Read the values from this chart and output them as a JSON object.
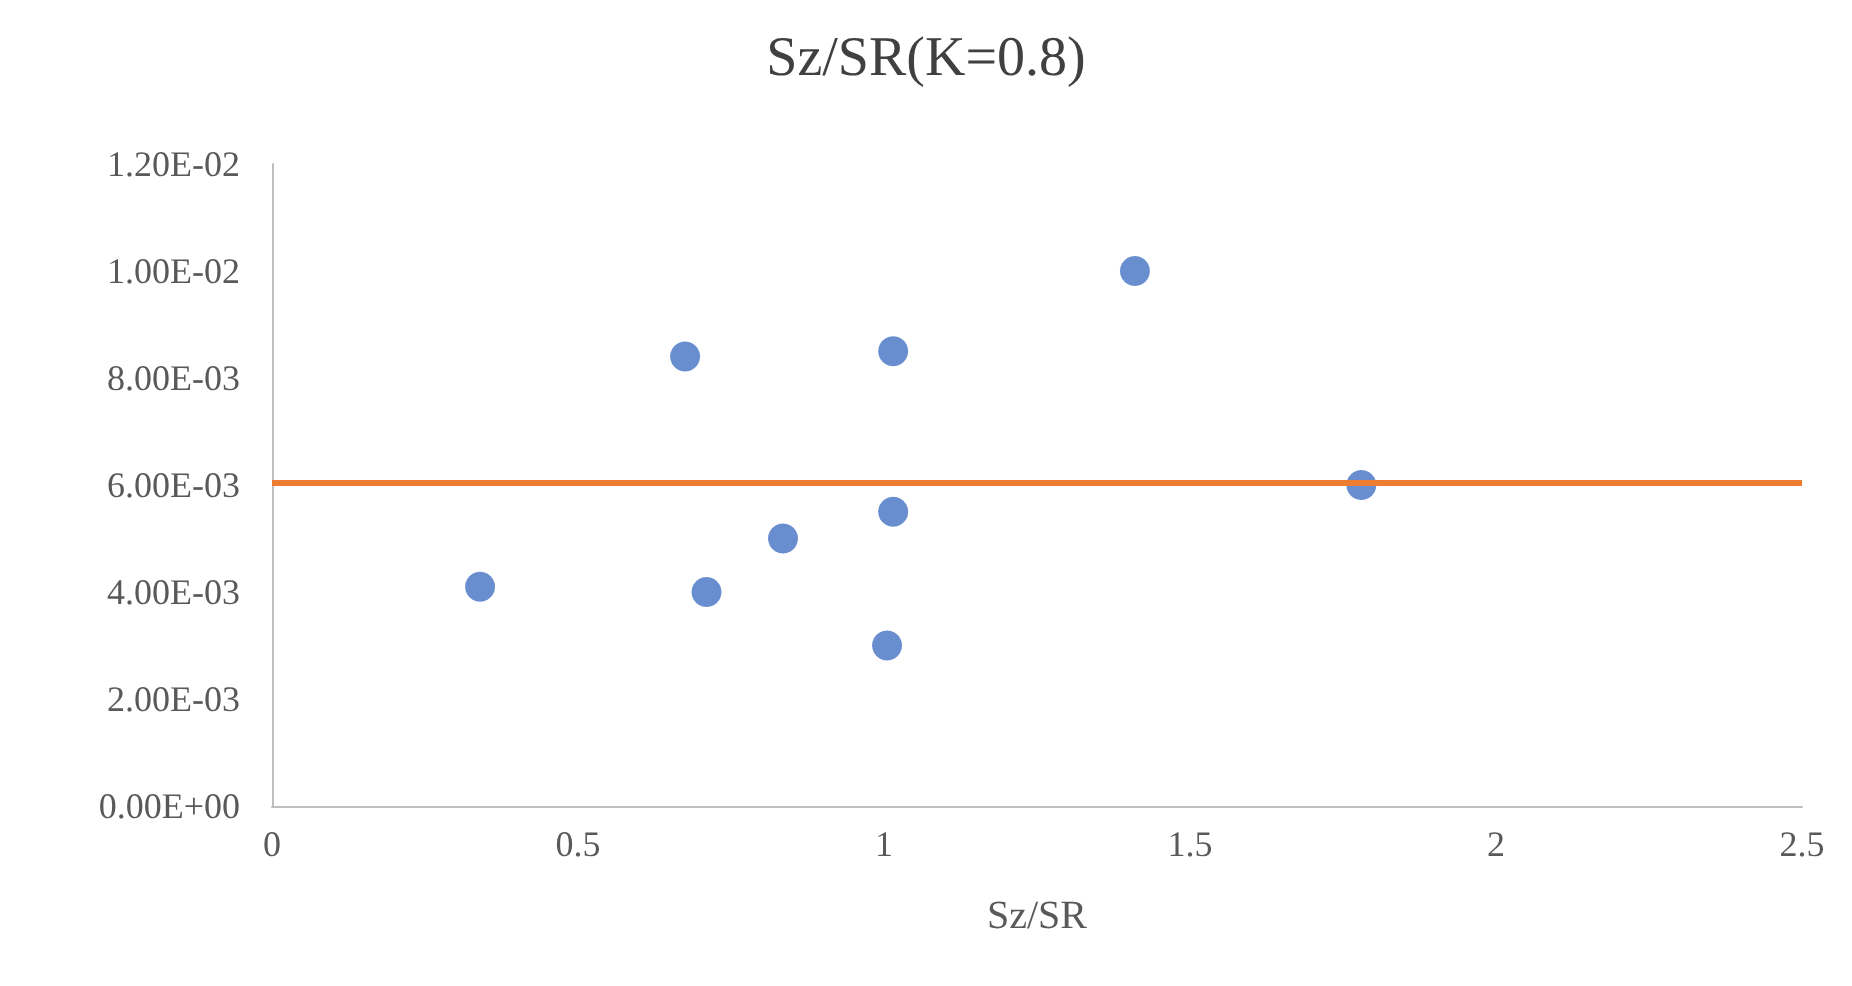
{
  "chart_data": {
    "type": "scatter",
    "title": "Sz/SR(K=0.8)",
    "xlabel": "Sz/SR",
    "x": [
      0.34,
      0.675,
      0.71,
      0.835,
      1.005,
      1.015,
      1.015,
      1.41,
      1.78
    ],
    "series": [
      {
        "color": "#4472c4",
        "values": [
          0.0041,
          0.0084,
          0.004,
          0.005,
          0.003,
          0.0085,
          0.0055,
          0.01,
          0.006
        ]
      }
    ],
    "xlim": [
      0,
      2.5
    ],
    "xticks": [
      0,
      0.5,
      1,
      1.5,
      2,
      2.5
    ],
    "ylim": [
      0,
      0.012
    ],
    "yticks": [
      {
        "value": 0,
        "label": "0.00E+00"
      },
      {
        "value": 0.002,
        "label": "2.00E-03"
      },
      {
        "value": 0.004,
        "label": "4.00E-03"
      },
      {
        "value": 0.006,
        "label": "6.00E-03"
      },
      {
        "value": 0.008,
        "label": "8.00E-03"
      },
      {
        "value": 0.01,
        "label": "1.00E-02"
      },
      {
        "value": 0.012,
        "label": "1.20E-02"
      }
    ],
    "ref_lines": [
      {
        "axis": "y",
        "value": 0.00605,
        "color": "#ed7d31"
      }
    ],
    "grid": false,
    "marker": "circle"
  }
}
